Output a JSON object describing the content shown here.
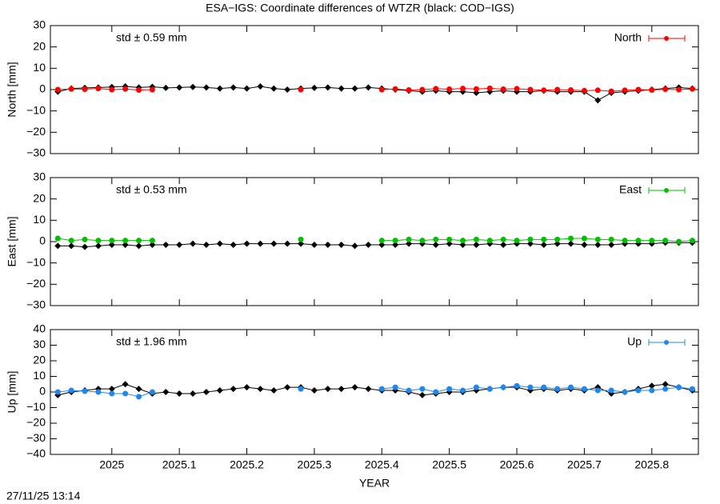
{
  "title": "ESA−IGS: Coordinate differences of WTZR (black: COD−IGS)",
  "timestamp": "27/11/25 13:14",
  "chart_data": [
    {
      "type": "scatter",
      "ylabel": "North [mm]",
      "annotation": "std ± 0.59 mm",
      "annotation_color": "#ff0000",
      "legend": "top-right",
      "xtick_labels": false,
      "xlim": [
        2024.909,
        2025.869
      ],
      "xticks": [
        2025,
        2025.1,
        2025.2,
        2025.3,
        2025.4,
        2025.5,
        2025.6,
        2025.7,
        2025.8
      ],
      "ylim": [
        -30,
        30
      ],
      "yticks": [
        {
          "value": -30,
          "label": "−30"
        },
        {
          "value": -20,
          "label": "−20"
        },
        {
          "value": -10,
          "label": "−10"
        },
        0,
        10,
        20,
        30
      ],
      "x": [
        2024.92,
        2024.94,
        2024.96,
        2024.98,
        2025.0,
        2025.02,
        2025.04,
        2025.06,
        2025.08,
        2025.1,
        2025.12,
        2025.14,
        2025.16,
        2025.18,
        2025.2,
        2025.22,
        2025.24,
        2025.26,
        2025.28,
        2025.3,
        2025.32,
        2025.34,
        2025.36,
        2025.38,
        2025.4,
        2025.42,
        2025.44,
        2025.46,
        2025.48,
        2025.5,
        2025.52,
        2025.54,
        2025.56,
        2025.58,
        2025.6,
        2025.62,
        2025.64,
        2025.66,
        2025.68,
        2025.7,
        2025.72,
        2025.74,
        2025.76,
        2025.78,
        2025.8,
        2025.82,
        2025.84,
        2025.86
      ],
      "series": [
        {
          "color": "#000000",
          "values": [
            -1,
            0.5,
            0.8,
            1,
            1.2,
            1.5,
            1,
            1.3,
            0.8,
            1,
            1.2,
            1,
            0.5,
            1,
            0.5,
            1.5,
            0.5,
            0,
            0.5,
            0.8,
            1,
            0.5,
            0.5,
            1,
            0.5,
            0,
            -0.5,
            -1,
            -0.5,
            -1,
            -1,
            -1.5,
            -1,
            -0.5,
            -1,
            -1,
            -0.5,
            -1,
            -1,
            -1,
            -5,
            -1.5,
            -1,
            -0.5,
            0,
            0.5,
            1,
            0.5
          ]
        },
        {
          "name": "North",
          "color": "#ff0000",
          "values": [
            0,
            0.3,
            0.2,
            0.5,
            0,
            0.3,
            -0.2,
            0,
            null,
            null,
            null,
            null,
            null,
            null,
            null,
            null,
            null,
            null,
            0,
            null,
            null,
            null,
            null,
            null,
            0,
            0.3,
            -0.2,
            0,
            0.4,
            0.2,
            0.5,
            0.3,
            0.6,
            0.2,
            0.4,
            0,
            -0.3,
            0,
            -0.2,
            -0.5,
            -0.3,
            -0.8,
            -0.3,
            0,
            -0.2,
            0.2,
            0,
            0.3
          ]
        }
      ]
    },
    {
      "type": "scatter",
      "ylabel": "East [mm]",
      "annotation": "std ± 0.53 mm",
      "annotation_color": "#00c000",
      "legend": "top-right",
      "xtick_labels": false,
      "xlim": [
        2024.909,
        2025.869
      ],
      "xticks": [
        2025,
        2025.1,
        2025.2,
        2025.3,
        2025.4,
        2025.5,
        2025.6,
        2025.7,
        2025.8
      ],
      "ylim": [
        -30,
        30
      ],
      "yticks": [
        {
          "value": -30,
          "label": "−30"
        },
        {
          "value": -20,
          "label": "−20"
        },
        {
          "value": -10,
          "label": "−10"
        },
        0,
        10,
        20,
        30
      ],
      "x": [
        2024.92,
        2024.94,
        2024.96,
        2024.98,
        2025.0,
        2025.02,
        2025.04,
        2025.06,
        2025.08,
        2025.1,
        2025.12,
        2025.14,
        2025.16,
        2025.18,
        2025.2,
        2025.22,
        2025.24,
        2025.26,
        2025.28,
        2025.3,
        2025.32,
        2025.34,
        2025.36,
        2025.38,
        2025.4,
        2025.42,
        2025.44,
        2025.46,
        2025.48,
        2025.5,
        2025.52,
        2025.54,
        2025.56,
        2025.58,
        2025.6,
        2025.62,
        2025.64,
        2025.66,
        2025.68,
        2025.7,
        2025.72,
        2025.74,
        2025.76,
        2025.78,
        2025.8,
        2025.82,
        2025.84,
        2025.86
      ],
      "series": [
        {
          "color": "#000000",
          "values": [
            -2,
            -2,
            -2.5,
            -2,
            -1.5,
            -1.5,
            -2,
            -1.5,
            -1.5,
            -1.5,
            -1,
            -1.5,
            -1,
            -1.5,
            -1,
            -1,
            -1,
            -1,
            -1,
            -1.5,
            -1.5,
            -1.5,
            -2,
            -1.5,
            -1.5,
            -1.5,
            -1,
            -1,
            -1.5,
            -1,
            -1.5,
            -1.5,
            -1,
            -1.5,
            -1,
            -1,
            -1.5,
            -1,
            -1,
            -1.5,
            -1.5,
            -1.5,
            -1,
            -1,
            -1,
            -0.5,
            -0.5,
            -0.5
          ]
        },
        {
          "name": "East",
          "color": "#00c000",
          "values": [
            1.5,
            0.5,
            1,
            0.5,
            0.5,
            0.5,
            0.5,
            0.5,
            null,
            null,
            null,
            null,
            null,
            null,
            null,
            null,
            null,
            null,
            1,
            null,
            null,
            null,
            null,
            null,
            0.5,
            0.5,
            1,
            0.5,
            1,
            1,
            0.5,
            1,
            0.5,
            1,
            0.5,
            1,
            1,
            1,
            1.5,
            1.5,
            1,
            1,
            0.5,
            0.5,
            0.5,
            0.5,
            0,
            0.5
          ]
        }
      ]
    },
    {
      "type": "scatter",
      "ylabel": "Up [mm]",
      "annotation": "std ± 1.96 mm",
      "annotation_color": "#1e88f0",
      "legend": "top-right",
      "xtick_labels": true,
      "xlabel": "YEAR",
      "xlim": [
        2024.909,
        2025.869
      ],
      "xticks": [
        2025,
        2025.1,
        2025.2,
        2025.3,
        2025.4,
        2025.5,
        2025.6,
        2025.7,
        2025.8
      ],
      "ylim": [
        -40,
        40
      ],
      "yticks": [
        {
          "value": -40,
          "label": "−40"
        },
        {
          "value": -30,
          "label": "−30"
        },
        {
          "value": -20,
          "label": "−20"
        },
        {
          "value": -10,
          "label": "−10"
        },
        0,
        10,
        20,
        30,
        40
      ],
      "x": [
        2024.92,
        2024.94,
        2024.96,
        2024.98,
        2025.0,
        2025.02,
        2025.04,
        2025.06,
        2025.08,
        2025.1,
        2025.12,
        2025.14,
        2025.16,
        2025.18,
        2025.2,
        2025.22,
        2025.24,
        2025.26,
        2025.28,
        2025.3,
        2025.32,
        2025.34,
        2025.36,
        2025.38,
        2025.4,
        2025.42,
        2025.44,
        2025.46,
        2025.48,
        2025.5,
        2025.52,
        2025.54,
        2025.56,
        2025.58,
        2025.6,
        2025.62,
        2025.64,
        2025.66,
        2025.68,
        2025.7,
        2025.72,
        2025.74,
        2025.76,
        2025.78,
        2025.8,
        2025.82,
        2025.84,
        2025.86
      ],
      "series": [
        {
          "color": "#000000",
          "values": [
            -2,
            0,
            1,
            2,
            2,
            5,
            2,
            -1,
            0,
            -1,
            -1,
            0,
            1,
            2,
            3,
            2,
            1,
            3,
            3,
            1,
            2,
            2,
            3,
            2,
            1,
            1,
            0,
            -2,
            -1,
            0,
            0,
            1,
            2,
            3,
            3,
            1,
            2,
            1,
            2,
            1,
            3,
            -1,
            0,
            2,
            4,
            5,
            3,
            1
          ]
        },
        {
          "name": "Up",
          "color": "#1e88f0",
          "values": [
            0,
            1,
            0.5,
            0,
            -1,
            -1,
            -3,
            0,
            null,
            null,
            null,
            null,
            null,
            null,
            null,
            null,
            null,
            null,
            2,
            null,
            null,
            null,
            null,
            null,
            2,
            3,
            1,
            2,
            0,
            2,
            1,
            3,
            2,
            3,
            4,
            3,
            3,
            2,
            3,
            2,
            1,
            1,
            0,
            1,
            1,
            2,
            3,
            2
          ]
        }
      ]
    }
  ]
}
